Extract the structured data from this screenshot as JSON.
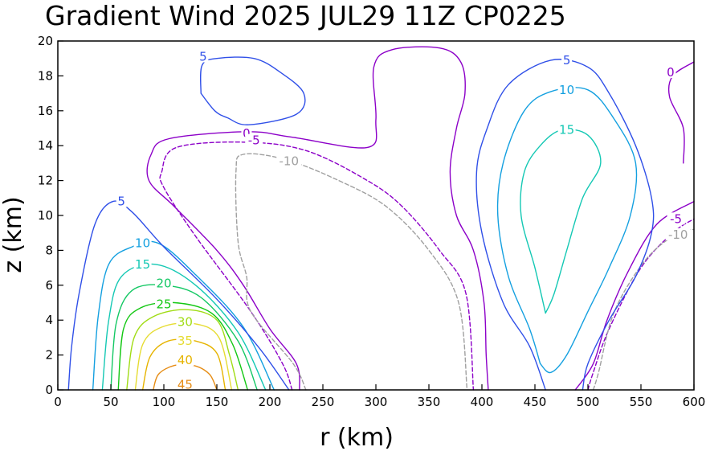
{
  "chart_data": {
    "type": "contour",
    "title": "Gradient Wind 2025 JUL29 11Z   CP0225",
    "xlabel": "r (km)",
    "ylabel": "z (km)",
    "xlim": [
      0,
      600
    ],
    "ylim": [
      0,
      20
    ],
    "xticks": [
      0,
      50,
      100,
      150,
      200,
      250,
      300,
      350,
      400,
      450,
      500,
      550,
      600
    ],
    "yticks": [
      0,
      2,
      4,
      6,
      8,
      10,
      12,
      14,
      16,
      18,
      20
    ],
    "grid": false,
    "legend": "none",
    "colors": {
      "-10": "#a0a0a0",
      "-5": "#8c00c8",
      "0": "#8c00c8",
      "5": "#3050e8",
      "10": "#14a0e0",
      "15": "#14c8b4",
      "20": "#14c864",
      "25": "#14c814",
      "30": "#a0dc14",
      "35": "#e6dc32",
      "40": "#e6b400",
      "45": "#e68c14"
    },
    "contours": [
      {
        "level": 45,
        "label": "45",
        "label_at": [
          120,
          0.3
        ],
        "points": [
          [
            90,
            0
          ],
          [
            95,
            0.9
          ],
          [
            110,
            1.4
          ],
          [
            128,
            1.4
          ],
          [
            143,
            0.9
          ],
          [
            150,
            0
          ]
        ]
      },
      {
        "level": 40,
        "label": "40",
        "label_at": [
          120,
          1.7
        ],
        "points": [
          [
            80,
            0
          ],
          [
            87,
            1.9
          ],
          [
            104,
            2.8
          ],
          [
            130,
            2.8
          ],
          [
            150,
            2.1
          ],
          [
            158,
            0
          ]
        ]
      },
      {
        "level": 35,
        "label": "35",
        "label_at": [
          120,
          2.8
        ],
        "points": [
          [
            73,
            0
          ],
          [
            80,
            2.6
          ],
          [
            98,
            3.6
          ],
          [
            128,
            3.8
          ],
          [
            152,
            3.0
          ],
          [
            164,
            0
          ]
        ]
      },
      {
        "level": 30,
        "label": "30",
        "label_at": [
          120,
          3.9
        ],
        "points": [
          [
            65,
            0
          ],
          [
            72,
            3.0
          ],
          [
            90,
            4.2
          ],
          [
            122,
            4.6
          ],
          [
            150,
            4.0
          ],
          [
            162,
            2.0
          ],
          [
            170,
            0
          ]
        ]
      },
      {
        "level": 25,
        "label": "25",
        "label_at": [
          100,
          4.9
        ],
        "points": [
          [
            57,
            0
          ],
          [
            62,
            3.5
          ],
          [
            78,
            4.7
          ],
          [
            110,
            5.0
          ],
          [
            145,
            4.4
          ],
          [
            165,
            2.6
          ],
          [
            179,
            0
          ]
        ]
      },
      {
        "level": 20,
        "label": "20",
        "label_at": [
          100,
          6.1
        ],
        "points": [
          [
            50,
            0
          ],
          [
            55,
            3.8
          ],
          [
            70,
            5.7
          ],
          [
            100,
            6.0
          ],
          [
            135,
            5.3
          ],
          [
            170,
            2.8
          ],
          [
            188,
            0
          ]
        ]
      },
      {
        "level": 15,
        "label": "15",
        "label_at": [
          80,
          7.2
        ],
        "points": [
          [
            42,
            0
          ],
          [
            48,
            4.0
          ],
          [
            60,
            6.5
          ],
          [
            92,
            7.2
          ],
          [
            130,
            6.0
          ],
          [
            170,
            3.3
          ],
          [
            196,
            0
          ]
        ]
      },
      {
        "level": 10,
        "label": "10",
        "label_at": [
          80,
          8.4
        ],
        "points": [
          [
            33,
            0
          ],
          [
            38,
            4.2
          ],
          [
            48,
            7.2
          ],
          [
            70,
            8.2
          ],
          [
            95,
            8.4
          ],
          [
            130,
            6.6
          ],
          [
            175,
            3.6
          ],
          [
            204,
            0
          ]
        ]
      },
      {
        "level": 5,
        "label": "5",
        "label_at": [
          60,
          10.8
        ],
        "points": [
          [
            10,
            0
          ],
          [
            13,
            2.5
          ],
          [
            20,
            5.5
          ],
          [
            35,
            9.5
          ],
          [
            52,
            10.8
          ],
          [
            70,
            10.2
          ],
          [
            100,
            8.2
          ],
          [
            150,
            5.2
          ],
          [
            190,
            2.4
          ],
          [
            218,
            0
          ]
        ]
      },
      {
        "level": 0,
        "label": "0",
        "label_at": [
          178,
          14.7
        ],
        "points": [
          [
            228,
            0
          ],
          [
            225,
            1.5
          ],
          [
            200,
            3.5
          ],
          [
            175,
            6.0
          ],
          [
            150,
            8.0
          ],
          [
            110,
            10.5
          ],
          [
            86,
            12.0
          ],
          [
            88,
            13.5
          ],
          [
            105,
            14.4
          ],
          [
            178,
            14.8
          ],
          [
            220,
            14.5
          ],
          [
            292,
            13.9
          ],
          [
            300,
            15.5
          ],
          [
            298,
            18.5
          ],
          [
            315,
            19.5
          ],
          [
            360,
            19.6
          ],
          [
            380,
            18.8
          ],
          [
            384,
            17.0
          ],
          [
            376,
            15.0
          ],
          [
            370,
            12.5
          ],
          [
            376,
            10.0
          ],
          [
            392,
            8.0
          ],
          [
            402,
            5.0
          ],
          [
            404,
            2.0
          ],
          [
            406,
            0
          ]
        ]
      },
      {
        "level": 0,
        "label": "0",
        "label_at": [
          578,
          18.2
        ],
        "points": [
          [
            488,
            0
          ],
          [
            505,
            1.5
          ],
          [
            518,
            4.0
          ],
          [
            538,
            6.8
          ],
          [
            565,
            9.5
          ],
          [
            600,
            10.8
          ]
        ]
      },
      {
        "level": 0,
        "label": "",
        "label_at": null,
        "points": [
          [
            600,
            18.8
          ],
          [
            580,
            18.0
          ],
          [
            577,
            16.8
          ],
          [
            590,
            15.0
          ],
          [
            590,
            13.0
          ]
        ]
      },
      {
        "level": -5,
        "label": "-5",
        "label_at": [
          185,
          14.3
        ],
        "dashed": true,
        "points": [
          [
            221,
            0
          ],
          [
            212,
            1.5
          ],
          [
            182,
            4.5
          ],
          [
            130,
            8.8
          ],
          [
            100,
            11.6
          ],
          [
            98,
            12.5
          ],
          [
            112,
            13.9
          ],
          [
            178,
            14.2
          ],
          [
            235,
            13.7
          ],
          [
            292,
            12.0
          ],
          [
            325,
            10.5
          ],
          [
            360,
            8.0
          ],
          [
            385,
            5.5
          ],
          [
            392,
            0
          ]
        ]
      },
      {
        "level": -5,
        "label": "-5",
        "label_at": [
          583,
          9.8
        ],
        "dashed": true,
        "points": [
          [
            500,
            0
          ],
          [
            505,
            1.0
          ],
          [
            520,
            3.5
          ],
          [
            550,
            7.0
          ],
          [
            580,
            9.0
          ],
          [
            600,
            9.8
          ]
        ]
      },
      {
        "level": -10,
        "label": "-10",
        "label_at": [
          218,
          13.1
        ],
        "dashed": true,
        "points": [
          [
            234,
            0
          ],
          [
            222,
            1.5
          ],
          [
            182,
            4.5
          ],
          [
            178,
            6.5
          ],
          [
            170,
            8.5
          ],
          [
            168,
            12.5
          ],
          [
            175,
            13.5
          ],
          [
            215,
            13.2
          ],
          [
            265,
            12.0
          ],
          [
            310,
            10.5
          ],
          [
            350,
            8.0
          ],
          [
            378,
            5.0
          ],
          [
            386,
            0
          ]
        ]
      },
      {
        "level": -10,
        "label": "-10",
        "label_at": [
          585,
          8.9
        ],
        "dashed": true,
        "points": [
          [
            505,
            0
          ],
          [
            510,
            1.0
          ],
          [
            525,
            4.5
          ],
          [
            555,
            7.5
          ],
          [
            585,
            9.0
          ],
          [
            600,
            9.2
          ]
        ]
      },
      {
        "level": 5,
        "label": "5",
        "label_at": [
          137,
          19.1
        ],
        "points": [
          [
            135,
            17.0
          ],
          [
            136,
            18.6
          ],
          [
            150,
            19.0
          ],
          [
            185,
            19.0
          ],
          [
            210,
            18.2
          ],
          [
            232,
            17.0
          ],
          [
            225,
            15.8
          ],
          [
            180,
            15.2
          ],
          [
            160,
            15.6
          ],
          [
            148,
            16.0
          ],
          [
            135,
            17.0
          ]
        ]
      },
      {
        "level": 5,
        "label": "5",
        "label_at": [
          480,
          18.9
        ],
        "points": [
          [
            460,
            0
          ],
          [
            445,
            2.5
          ],
          [
            420,
            5.0
          ],
          [
            400,
            9.0
          ],
          [
            395,
            12.5
          ],
          [
            405,
            15.0
          ],
          [
            425,
            17.5
          ],
          [
            465,
            18.9
          ],
          [
            500,
            18.5
          ],
          [
            520,
            17.0
          ],
          [
            545,
            14.0
          ],
          [
            560,
            11.0
          ],
          [
            560,
            9.0
          ],
          [
            545,
            6.5
          ],
          [
            520,
            4.0
          ],
          [
            500,
            1.5
          ],
          [
            495,
            0
          ]
        ]
      },
      {
        "level": 10,
        "label": "10",
        "label_at": [
          480,
          17.2
        ],
        "points": [
          [
            455,
            1.5
          ],
          [
            445,
            3.5
          ],
          [
            425,
            6.5
          ],
          [
            415,
            10.0
          ],
          [
            420,
            13.0
          ],
          [
            440,
            16.0
          ],
          [
            465,
            17.1
          ],
          [
            500,
            17.2
          ],
          [
            525,
            15.5
          ],
          [
            545,
            13.0
          ],
          [
            540,
            10.0
          ],
          [
            520,
            7.0
          ],
          [
            500,
            4.5
          ],
          [
            480,
            2.0
          ],
          [
            465,
            1.0
          ],
          [
            455,
            1.5
          ]
        ]
      },
      {
        "level": 15,
        "label": "15",
        "label_at": [
          480,
          14.9
        ],
        "points": [
          [
            460,
            4.4
          ],
          [
            450,
            7.0
          ],
          [
            437,
            10.0
          ],
          [
            440,
            12.5
          ],
          [
            455,
            14.0
          ],
          [
            475,
            14.9
          ],
          [
            500,
            14.6
          ],
          [
            512,
            13.0
          ],
          [
            495,
            11.0
          ],
          [
            480,
            8.0
          ],
          [
            468,
            5.5
          ],
          [
            460,
            4.4
          ]
        ]
      }
    ]
  }
}
